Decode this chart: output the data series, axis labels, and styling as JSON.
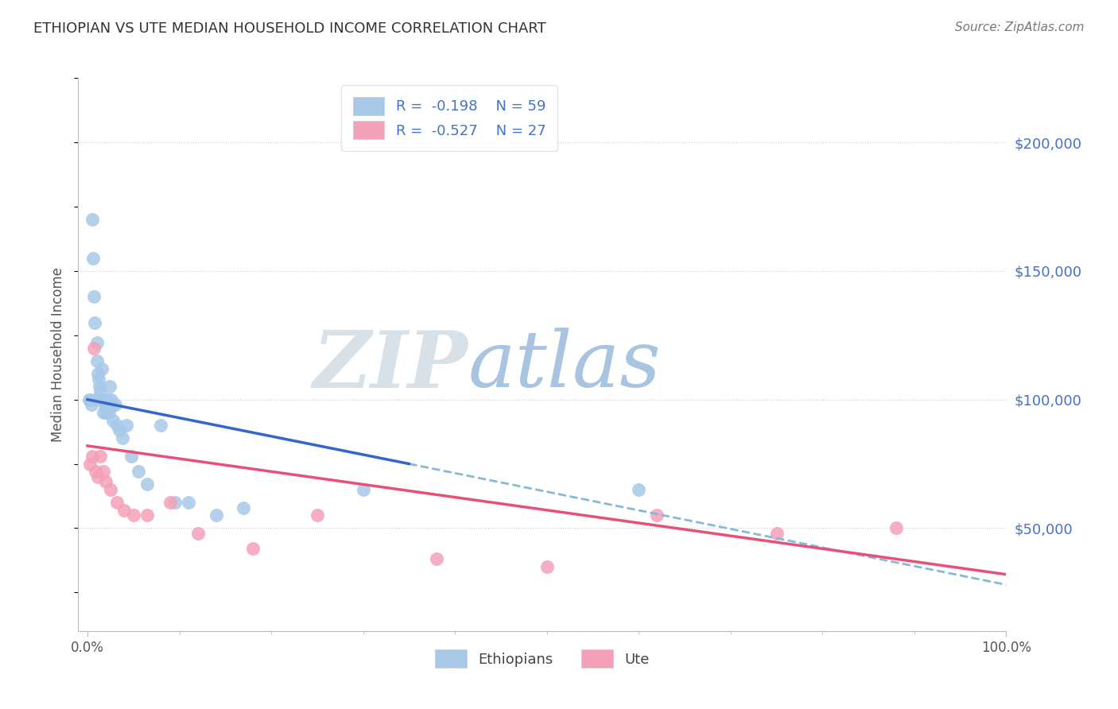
{
  "title": "ETHIOPIAN VS UTE MEDIAN HOUSEHOLD INCOME CORRELATION CHART",
  "source": "Source: ZipAtlas.com",
  "ylabel": "Median Household Income",
  "xlim": [
    -1,
    100
  ],
  "ylim": [
    10000,
    225000
  ],
  "yticks": [
    50000,
    100000,
    150000,
    200000
  ],
  "ytick_labels": [
    "$50,000",
    "$100,000",
    "$150,000",
    "$200,000"
  ],
  "ethiopians_color": "#a8c8e8",
  "ute_color": "#f4a0b8",
  "trend_eth_color": "#3366cc",
  "trend_ute_color": "#e8507a",
  "trend_dash_color": "#88b8d8",
  "wm_zip_color": "#d8e0e8",
  "wm_atlas_color": "#a8c4e0",
  "eth_x": [
    0.2,
    0.3,
    0.4,
    0.5,
    0.6,
    0.7,
    0.8,
    0.9,
    1.0,
    1.0,
    1.1,
    1.2,
    1.3,
    1.4,
    1.5,
    1.6,
    1.7,
    1.8,
    1.9,
    2.0,
    2.0,
    2.1,
    2.2,
    2.3,
    2.4,
    2.5,
    2.6,
    2.8,
    3.0,
    3.2,
    3.5,
    3.8,
    4.2,
    4.8,
    5.5,
    6.5,
    8.0,
    9.5,
    11.0,
    14.0,
    17.0,
    30.0,
    60.0
  ],
  "eth_y": [
    100000,
    100000,
    98000,
    170000,
    155000,
    140000,
    130000,
    100000,
    122000,
    115000,
    110000,
    108000,
    105000,
    103000,
    100000,
    112000,
    95000,
    100000,
    98000,
    100000,
    95000,
    98000,
    100000,
    95000,
    105000,
    97000,
    100000,
    92000,
    98000,
    90000,
    88000,
    85000,
    90000,
    78000,
    72000,
    67000,
    90000,
    60000,
    60000,
    55000,
    58000,
    65000,
    65000
  ],
  "ute_x": [
    0.3,
    0.5,
    0.7,
    0.9,
    1.1,
    1.4,
    1.7,
    2.0,
    2.5,
    3.2,
    4.0,
    5.0,
    6.5,
    9.0,
    12.0,
    18.0,
    25.0,
    38.0,
    50.0,
    62.0,
    75.0,
    88.0
  ],
  "ute_y": [
    75000,
    78000,
    120000,
    72000,
    70000,
    78000,
    72000,
    68000,
    65000,
    60000,
    57000,
    55000,
    55000,
    60000,
    48000,
    42000,
    55000,
    38000,
    35000,
    55000,
    48000,
    50000
  ],
  "eth_solid_x0": 0,
  "eth_solid_x1": 35,
  "eth_solid_y0": 100000,
  "eth_solid_y1": 75000,
  "eth_dash_x0": 35,
  "eth_dash_x1": 100,
  "eth_dash_y0": 75000,
  "eth_dash_y1": 28000,
  "ute_x0": 0,
  "ute_x1": 100,
  "ute_y0": 82000,
  "ute_y1": 32000,
  "leg1_eth": "R =  -0.198    N = 59",
  "leg1_ute": "R =  -0.527    N = 27",
  "leg2_eth": "Ethiopians",
  "leg2_ute": "Ute",
  "text_blue": "#4472c4",
  "text_dark": "#333333",
  "text_source": "#777777"
}
